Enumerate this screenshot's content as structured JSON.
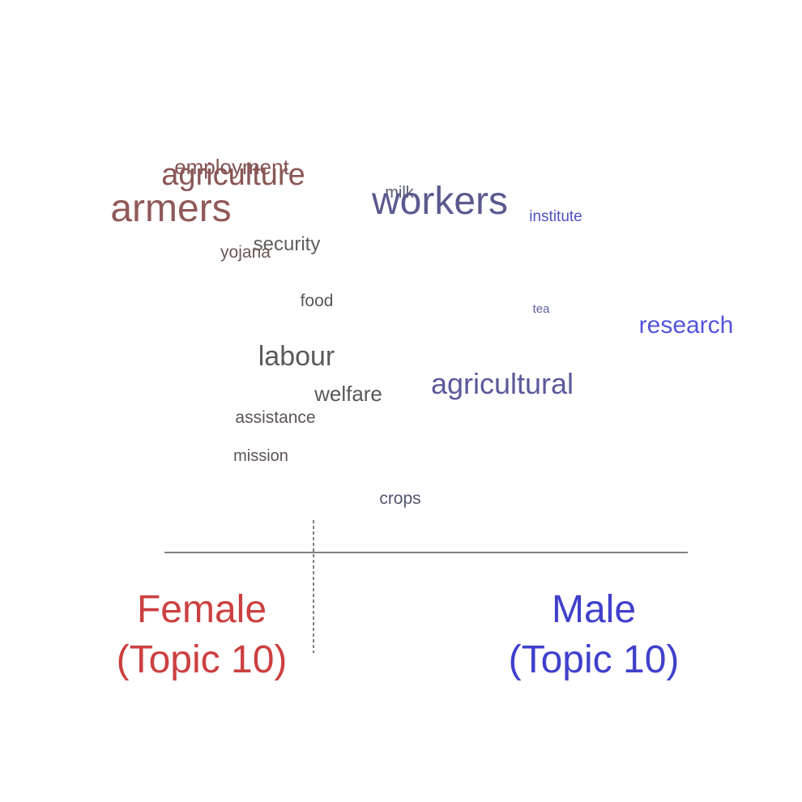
{
  "chart_data": {
    "type": "scatter",
    "subtype": "word-comparison-plot",
    "groups": [
      {
        "name": "Female",
        "subtitle": "(Topic 10)",
        "color": "#cc4040"
      },
      {
        "name": "Male",
        "subtitle": "(Topic 10)",
        "color": "#4040cc"
      }
    ],
    "words": [
      {
        "text": "employment",
        "lean": -0.6,
        "rank": 1,
        "color": "#845454"
      },
      {
        "text": "agriculture",
        "lean": -0.4,
        "rank": 1.3,
        "color": "#8a5656"
      },
      {
        "text": "armers",
        "lean": -0.82,
        "rank": 2.1,
        "color": "#905a5a"
      },
      {
        "text": "milk",
        "lean": 0.1,
        "rank": 1.7,
        "color": "#575a72"
      },
      {
        "text": "workers",
        "lean": 0.32,
        "rank": 2.0,
        "color": "#5a5a8e"
      },
      {
        "text": "institute",
        "lean": 0.7,
        "rank": 2.5,
        "color": "#5050c0"
      },
      {
        "text": "security",
        "lean": -0.45,
        "rank": 3.5,
        "color": "#5e5e5e"
      },
      {
        "text": "yojana",
        "lean": -0.6,
        "rank": 3.8,
        "color": "#6a5656"
      },
      {
        "text": "food",
        "lean": -0.35,
        "rank": 5.1,
        "color": "#585858"
      },
      {
        "text": "tea",
        "lean": 0.6,
        "rank": 5.4,
        "color": "#6060a0"
      },
      {
        "text": "research",
        "lean": 0.92,
        "rank": 5.7,
        "color": "#5555dd"
      },
      {
        "text": "labour",
        "lean": -0.35,
        "rank": 6.9,
        "color": "#5a5a5a"
      },
      {
        "text": "agricultural",
        "lean": 0.46,
        "rank": 7.6,
        "color": "#5a5a9a"
      },
      {
        "text": "welfare",
        "lean": -0.24,
        "rank": 7.8,
        "color": "#585858"
      },
      {
        "text": "assistance",
        "lean": -0.52,
        "rank": 8.5,
        "color": "#5e5454"
      },
      {
        "text": "mission",
        "lean": -0.6,
        "rank": 9.5,
        "color": "#5e5454"
      },
      {
        "text": "crops",
        "lean": -0.1,
        "rank": 10.6,
        "color": "#555572"
      }
    ],
    "xlim": [
      -1,
      1
    ],
    "grid": false,
    "legend": "none"
  }
}
